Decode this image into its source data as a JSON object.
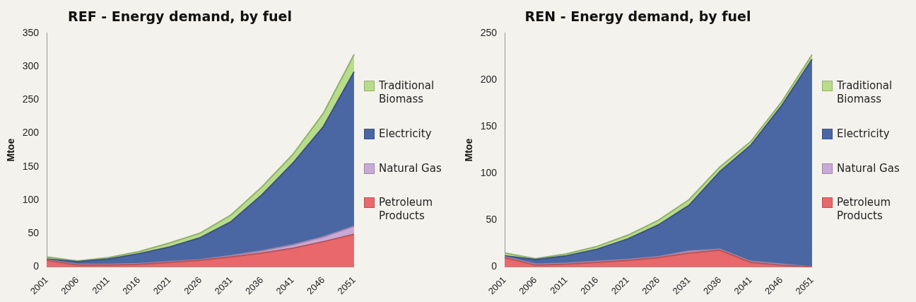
{
  "chart_data": [
    {
      "type": "area",
      "title": "REF - Energy demand, by fuel",
      "ylabel": "Mtoe",
      "stacked": true,
      "legend": "right",
      "grid": false,
      "categories": [
        "2001",
        "2006",
        "2011",
        "2016",
        "2021",
        "2026",
        "2031",
        "2036",
        "2041",
        "2046",
        "2051"
      ],
      "ylim": [
        0,
        350
      ],
      "yticks": [
        0,
        50,
        100,
        150,
        200,
        250,
        300,
        350
      ],
      "series": [
        {
          "name": "Petroleum Products",
          "color": "#e8686b",
          "values": [
            10,
            3,
            3,
            4,
            7,
            10,
            15,
            21,
            28,
            38,
            49
          ]
        },
        {
          "name": "Natural Gas",
          "color": "#c9a9d6",
          "values": [
            1,
            1,
            1,
            1,
            1,
            1,
            2,
            3,
            5,
            7,
            12
          ]
        },
        {
          "name": "Electricity",
          "color": "#4a67a3",
          "values": [
            1,
            4,
            8,
            15,
            22,
            33,
            51,
            84,
            122,
            165,
            231
          ]
        },
        {
          "name": "Traditional Biomass",
          "color": "#b7dc8a",
          "values": [
            3,
            1,
            2,
            3,
            6,
            7,
            10,
            12,
            13,
            20,
            26
          ]
        }
      ]
    },
    {
      "type": "area",
      "title": "REN - Energy demand, by fuel",
      "ylabel": "Mtoe",
      "stacked": true,
      "legend": "right",
      "grid": false,
      "categories": [
        "2001",
        "2006",
        "2011",
        "2016",
        "2021",
        "2026",
        "2031",
        "2036",
        "2041",
        "2046",
        "2051"
      ],
      "ylim": [
        0,
        250
      ],
      "yticks": [
        0,
        50,
        100,
        150,
        200,
        250
      ],
      "series": [
        {
          "name": "Petroleum Products",
          "color": "#e8686b",
          "values": [
            10,
            2,
            3,
            5,
            7,
            10,
            15,
            18,
            5,
            2,
            0
          ]
        },
        {
          "name": "Natural Gas",
          "color": "#c9a9d6",
          "values": [
            1,
            1,
            1,
            1,
            1,
            1,
            2,
            1,
            1,
            1,
            0
          ]
        },
        {
          "name": "Electricity",
          "color": "#4a67a3",
          "values": [
            1,
            5,
            8,
            13,
            22,
            34,
            49,
            83,
            124,
            169,
            222
          ]
        },
        {
          "name": "Traditional Biomass",
          "color": "#b7dc8a",
          "values": [
            3,
            1,
            2,
            3,
            4,
            5,
            6,
            5,
            4,
            4,
            5
          ]
        }
      ]
    }
  ]
}
